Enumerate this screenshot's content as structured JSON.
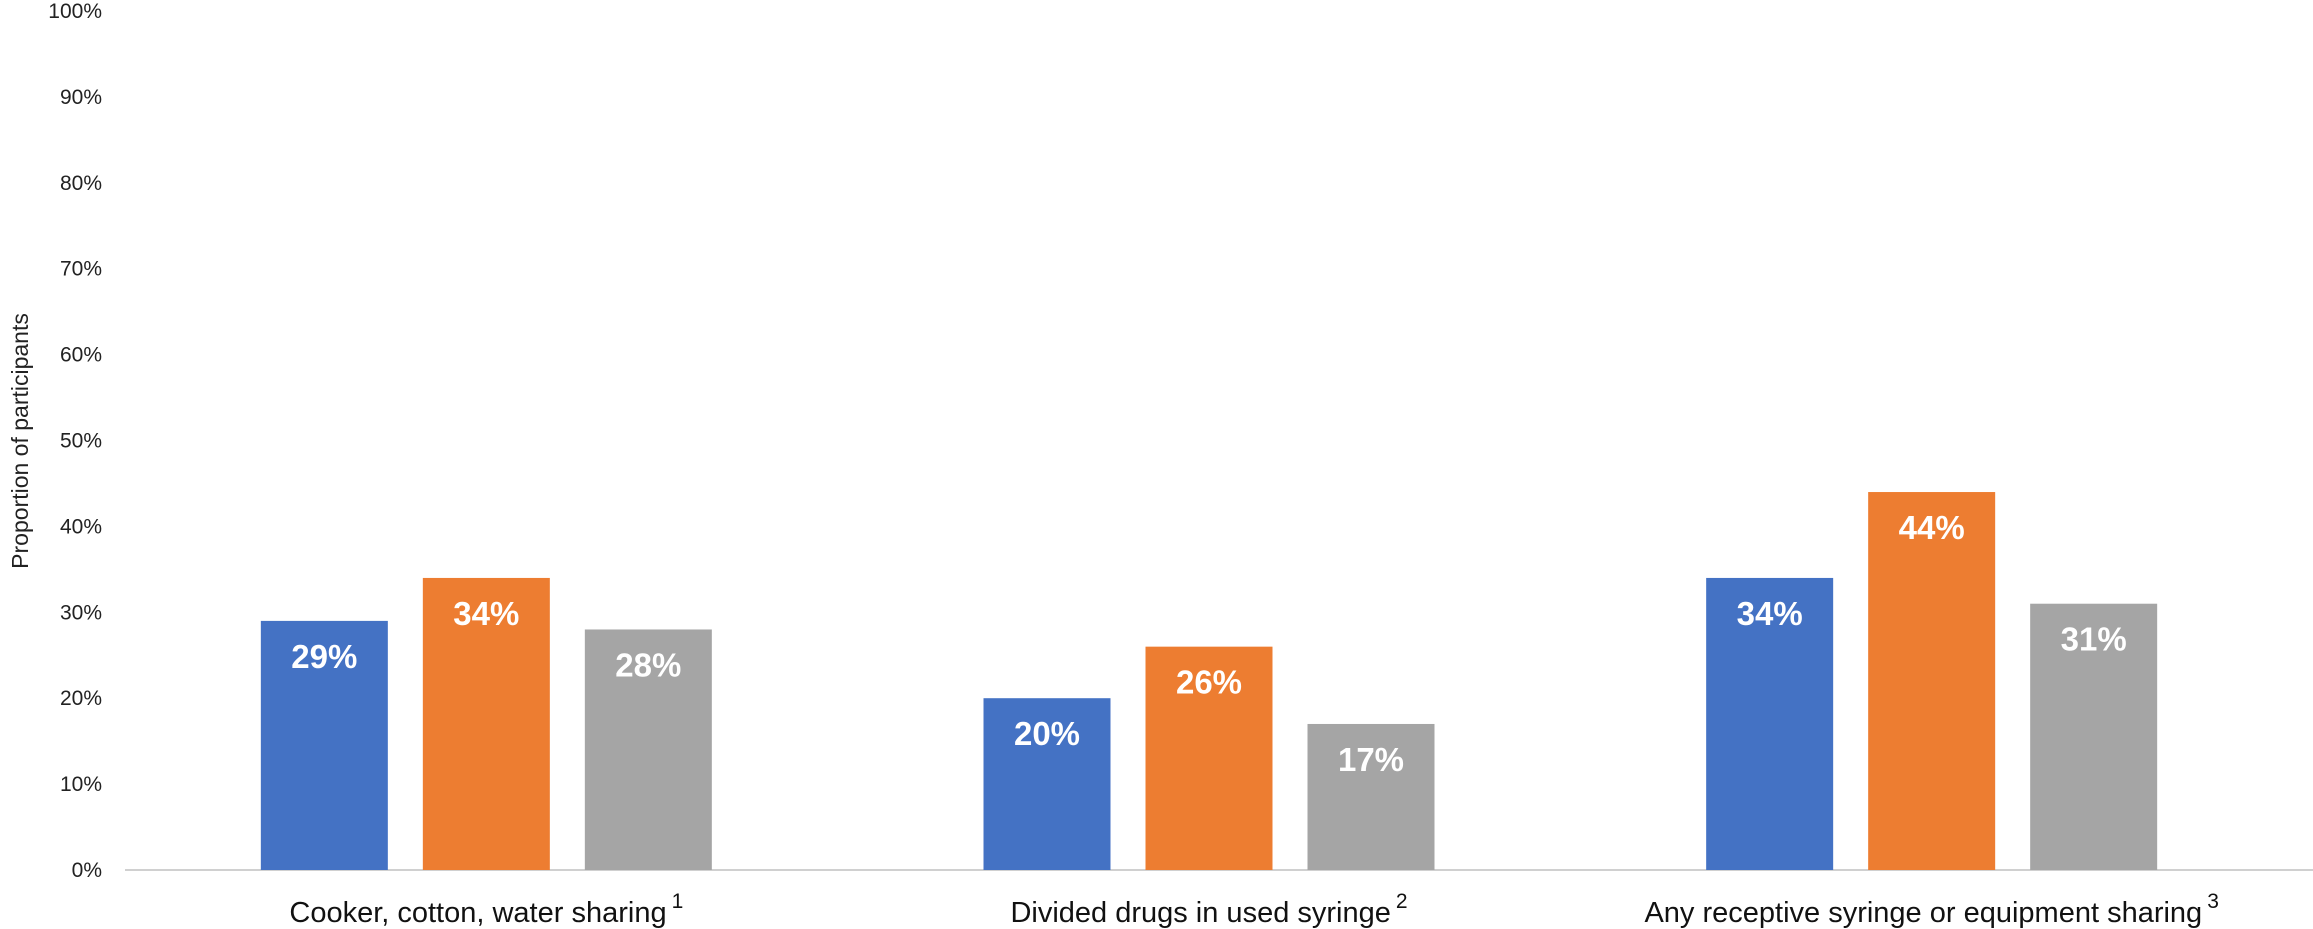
{
  "chart_data": {
    "type": "bar",
    "title": "",
    "xlabel": "",
    "ylabel": "Proportion of participants",
    "ylim": [
      0,
      100
    ],
    "yticks": [
      0,
      10,
      20,
      30,
      40,
      50,
      60,
      70,
      80,
      90,
      100
    ],
    "ytick_format": "%",
    "grid": false,
    "legend": "none",
    "categories": [
      {
        "label": "Cooker, cotton, water sharing",
        "footnote": "1"
      },
      {
        "label": "Divided drugs in used syringe",
        "footnote": "2"
      },
      {
        "label": "Any receptive syringe or equipment sharing",
        "footnote": "3"
      }
    ],
    "series": [
      {
        "color": "#4472C4",
        "values": [
          29,
          20,
          34
        ]
      },
      {
        "color": "#ED7D31",
        "values": [
          34,
          26,
          44
        ]
      },
      {
        "color": "#A5A5A5",
        "values": [
          28,
          17,
          31
        ]
      }
    ],
    "data_label_suffix": "%"
  }
}
